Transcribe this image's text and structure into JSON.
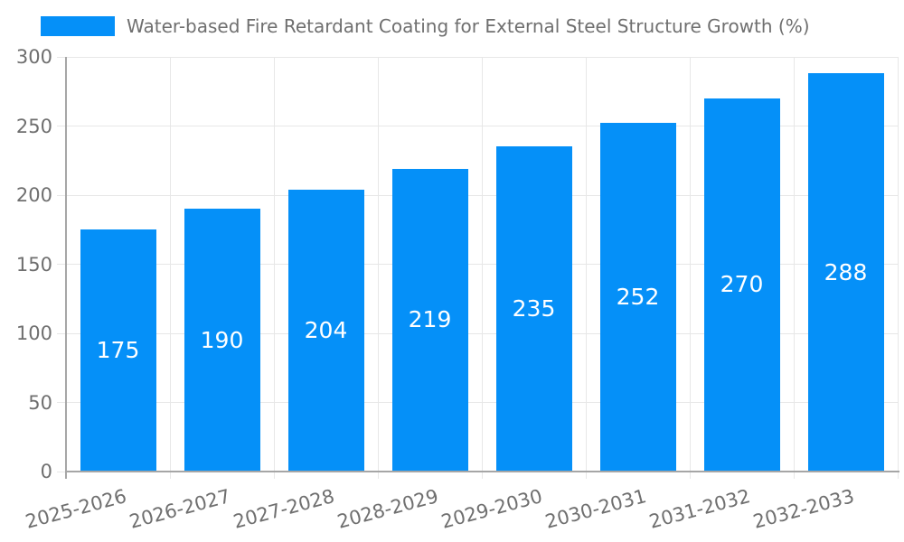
{
  "chart_data": {
    "type": "bar",
    "title": "Water-based Fire Retardant Coating for External Steel Structure Growth (%)",
    "categories": [
      "2025-2026",
      "2026-2027",
      "2027-2028",
      "2028-2029",
      "2029-2030",
      "2030-2031",
      "2031-2032",
      "2032-2033"
    ],
    "series": [
      {
        "name": "Water-based Fire Retardant Coating for External Steel Structure Growth (%)",
        "values": [
          175,
          190,
          204,
          219,
          235,
          252,
          270,
          288
        ]
      }
    ],
    "xlabel": "",
    "ylabel": "",
    "ylim": [
      0,
      300
    ],
    "yticks": [
      0,
      50,
      100,
      150,
      200,
      250,
      300
    ],
    "grid": true,
    "legend_position": "top-left",
    "colors": {
      "bar": "#0590f8",
      "bar_label_text": "#ffffff",
      "grid_line": "#e7e7e7",
      "axis_line": "#a6a6a6",
      "tick_text": "#6f6f6f",
      "legend_text": "#6f6f6f",
      "background": "#ffffff"
    }
  }
}
